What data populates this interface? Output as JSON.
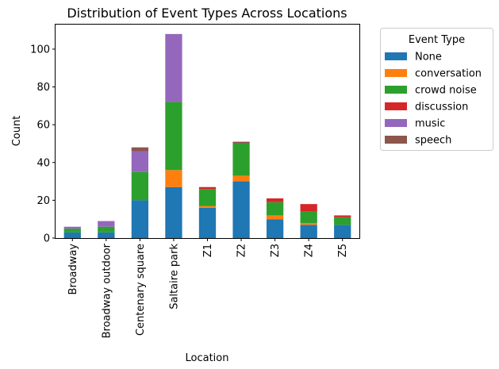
{
  "chart_data": {
    "type": "bar",
    "stacked": true,
    "title": "Distribution of Event Types Across Locations",
    "xlabel": "Location",
    "ylabel": "Count",
    "ylim": [
      0,
      113.4
    ],
    "yticks": [
      0,
      20,
      40,
      60,
      80,
      100
    ],
    "categories": [
      "Broadway",
      "Broadway outdoor",
      "Centenary square",
      "Saltaire park",
      "Z1",
      "Z2",
      "Z3",
      "Z4",
      "Z5"
    ],
    "legend": {
      "title": "Event Type",
      "placement": "outside-upper-right"
    },
    "grid": false,
    "series": [
      {
        "name": "None",
        "color": "#1f77b4",
        "values": [
          3,
          3,
          20,
          27,
          16,
          30,
          10,
          7,
          7
        ]
      },
      {
        "name": "conversation",
        "color": "#ff7f0e",
        "values": [
          0,
          0,
          0,
          9,
          1,
          3,
          2,
          1,
          0
        ]
      },
      {
        "name": "crowd noise",
        "color": "#2ca02c",
        "values": [
          2,
          3,
          15,
          36,
          9,
          17,
          7,
          6,
          4
        ]
      },
      {
        "name": "discussion",
        "color": "#d62728",
        "values": [
          0,
          0,
          0,
          0,
          1,
          0,
          2,
          4,
          1
        ]
      },
      {
        "name": "music",
        "color": "#9467bd",
        "values": [
          1,
          3,
          11,
          36,
          0,
          0,
          0,
          0,
          0
        ]
      },
      {
        "name": "speech",
        "color": "#8c564b",
        "values": [
          0,
          0,
          2,
          0,
          0,
          1,
          0,
          0,
          0
        ]
      }
    ]
  }
}
